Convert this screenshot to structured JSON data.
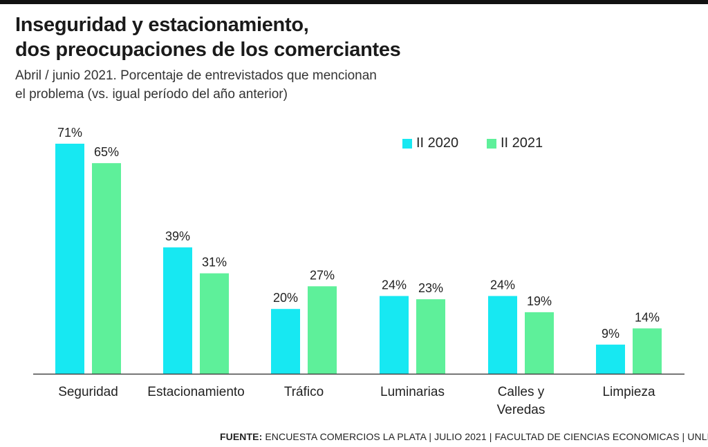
{
  "title_lines": [
    "Inseguridad y estacionamiento,",
    "dos preocupaciones de los comerciantes"
  ],
  "subtitle_lines": [
    "Abril / junio 2021. Porcentaje de entrevistados que mencionan",
    "el problema (vs. igual período del año anterior)"
  ],
  "footer": {
    "label": "FUENTE:",
    "text": " ENCUESTA COMERCIOS LA PLATA | JULIO 2021 | FACULTAD DE CIENCIAS ECONOMICAS | UNLP"
  },
  "colors": {
    "series_2020": "#17e8f2",
    "series_2021": "#5ef09a",
    "axis": "#444444",
    "rule": "#111111"
  },
  "chart_data": {
    "type": "bar",
    "categories": [
      "Seguridad",
      "Estacionamiento",
      "Tráfico",
      "Luminarias",
      "Calles y\nVeredas",
      "Limpieza"
    ],
    "series": [
      {
        "name": "II 2020",
        "values": [
          71,
          39,
          20,
          24,
          24,
          9
        ],
        "labels": [
          "71%",
          "39%",
          "20%",
          "24%",
          "24%",
          "9%"
        ]
      },
      {
        "name": "II 2021",
        "values": [
          65,
          31,
          27,
          23,
          19,
          14
        ],
        "labels": [
          "65%",
          "31%",
          "27%",
          "23%",
          "19%",
          "14%"
        ]
      }
    ],
    "ylim": [
      0,
      71
    ],
    "legend": "top-right",
    "grid": false
  }
}
